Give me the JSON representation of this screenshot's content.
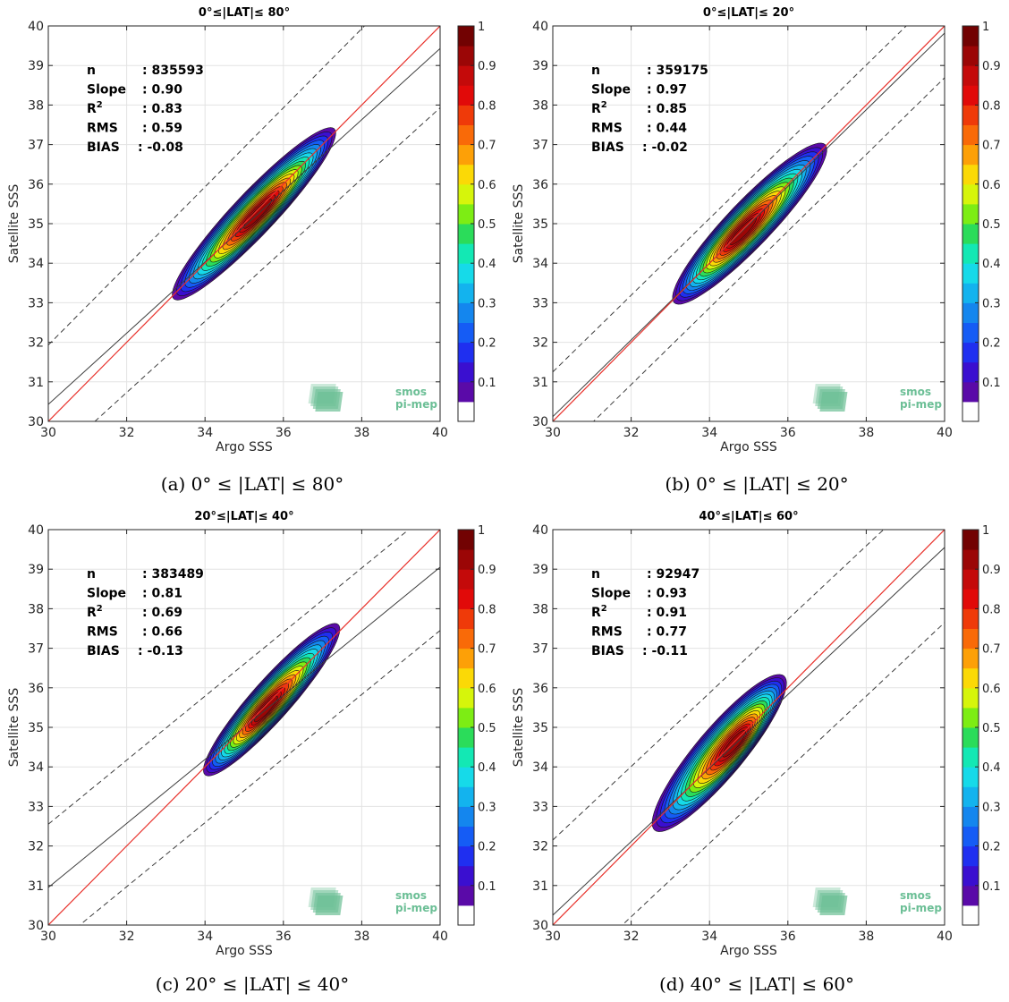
{
  "figure": {
    "colorbar_ticks": [
      "0.1",
      "0.2",
      "0.3",
      "0.4",
      "0.5",
      "0.6",
      "0.7",
      "0.8",
      "0.9",
      "1"
    ],
    "colormap": [
      "#ffffff",
      "#5a0aa8",
      "#3a0fd0",
      "#1f2ff0",
      "#155cf5",
      "#1486ee",
      "#13b3ee",
      "#16dae9",
      "#13e8b4",
      "#2bdc5a",
      "#7ded14",
      "#d6f50b",
      "#fbd906",
      "#fda007",
      "#f96a08",
      "#ef3a09",
      "#e10a09",
      "#c40a0a",
      "#9b0606",
      "#720202"
    ],
    "watermark": {
      "line1": "smos",
      "line2": "pi-mep",
      "color": "#6cbf96"
    },
    "line_colors": {
      "identity": "#e8312b",
      "fit": "#3c3c3c",
      "envelope": "#3c3c3c",
      "contour": "#141414"
    },
    "stats_labels": {
      "n": "n",
      "slope": "Slope",
      "r2_base": "R",
      "r2_sup": "2",
      "rms": "RMS",
      "bias": "BIAS"
    }
  },
  "chart_data": [
    {
      "type": "contour",
      "title": "0°≤|LAT|≤ 80°",
      "caption": "(a) 0° ≤ |LAT| ≤ 80°",
      "xlabel": "Argo SSS",
      "ylabel": "Satellite SSS",
      "xlim": [
        30,
        40
      ],
      "ylim": [
        30,
        40
      ],
      "xticks": [
        30,
        32,
        34,
        36,
        38,
        40
      ],
      "yticks": [
        30,
        31,
        32,
        33,
        34,
        35,
        36,
        37,
        38,
        39,
        40
      ],
      "grid": true,
      "stats": {
        "n": ": 835593",
        "slope": ": 0.90",
        "r2": ": 0.83",
        "rms": ": 0.59",
        "bias": ": -0.08"
      },
      "fit_line": [
        [
          30,
          30.43
        ],
        [
          40,
          39.43
        ]
      ],
      "envelope_upper": [
        [
          30,
          31.93
        ],
        [
          40,
          41.93
        ]
      ],
      "envelope_lower": [
        [
          30,
          28.93
        ],
        [
          40,
          37.93
        ]
      ],
      "density_peak": [
        35.35,
        35.25
      ],
      "density_extent": {
        "along_low": [
          33.2,
          33.1
        ],
        "along_high": [
          37.3,
          37.4
        ],
        "half_width": 0.75
      }
    },
    {
      "type": "contour",
      "title": "0°≤|LAT|≤ 20°",
      "caption": "(b) 0° ≤ |LAT| ≤ 20°",
      "xlabel": "Argo SSS",
      "ylabel": "Satellite SSS",
      "xlim": [
        30,
        40
      ],
      "ylim": [
        30,
        40
      ],
      "xticks": [
        30,
        32,
        34,
        36,
        38,
        40
      ],
      "yticks": [
        30,
        31,
        32,
        33,
        34,
        35,
        36,
        37,
        38,
        39,
        40
      ],
      "grid": true,
      "stats": {
        "n": ": 359175",
        "slope": ": 0.97",
        "r2": ": 0.85",
        "rms": ": 0.44",
        "bias": ": -0.02"
      },
      "fit_line": [
        [
          30,
          30.12
        ],
        [
          40,
          39.82
        ]
      ],
      "envelope_upper": [
        [
          30,
          31.25
        ],
        [
          40,
          40.95
        ]
      ],
      "envelope_lower": [
        [
          30,
          28.99
        ],
        [
          40,
          38.69
        ]
      ],
      "density_peak": [
        34.85,
        34.8
      ],
      "density_extent": {
        "along_low": [
          33.1,
          33.0
        ],
        "along_high": [
          36.95,
          37.0
        ],
        "half_width": 0.8
      }
    },
    {
      "type": "contour",
      "title": "20°≤|LAT|≤ 40°",
      "caption": "(c) 20° ≤ |LAT| ≤ 40°",
      "xlabel": "Argo SSS",
      "ylabel": "Satellite SSS",
      "xlim": [
        30,
        40
      ],
      "ylim": [
        30,
        40
      ],
      "xticks": [
        30,
        32,
        34,
        36,
        38,
        40
      ],
      "yticks": [
        30,
        31,
        32,
        33,
        34,
        35,
        36,
        37,
        38,
        39,
        40
      ],
      "grid": true,
      "stats": {
        "n": ": 383489",
        "slope": ": 0.81",
        "r2": ": 0.69",
        "rms": ": 0.66",
        "bias": ": -0.13"
      },
      "fit_line": [
        [
          30,
          30.95
        ],
        [
          40,
          39.05
        ]
      ],
      "envelope_upper": [
        [
          30,
          32.55
        ],
        [
          40,
          40.65
        ]
      ],
      "envelope_lower": [
        [
          30,
          29.35
        ],
        [
          40,
          37.45
        ]
      ],
      "density_peak": [
        35.55,
        35.45
      ],
      "density_extent": {
        "along_low": [
          34.0,
          33.8
        ],
        "along_high": [
          37.4,
          37.6
        ],
        "half_width": 0.7
      }
    },
    {
      "type": "contour",
      "title": "40°≤|LAT|≤ 60°",
      "caption": "(d) 40° ≤ |LAT| ≤ 60°",
      "xlabel": "Argo SSS",
      "ylabel": "Satellite SSS",
      "xlim": [
        30,
        40
      ],
      "ylim": [
        30,
        40
      ],
      "xticks": [
        30,
        32,
        34,
        36,
        38,
        40
      ],
      "yticks": [
        30,
        31,
        32,
        33,
        34,
        35,
        36,
        37,
        38,
        39,
        40
      ],
      "grid": true,
      "stats": {
        "n": ": 92947",
        "slope": ": 0.93",
        "r2": ": 0.91",
        "rms": ": 0.77",
        "bias": ": -0.11"
      },
      "fit_line": [
        [
          30,
          30.25
        ],
        [
          40,
          39.55
        ]
      ],
      "envelope_upper": [
        [
          30,
          32.15
        ],
        [
          40,
          41.45
        ]
      ],
      "envelope_lower": [
        [
          30,
          28.35
        ],
        [
          40,
          37.65
        ]
      ],
      "density_peak": [
        34.65,
        34.6
      ],
      "density_extent": {
        "along_low": [
          32.6,
          32.4
        ],
        "along_high": [
          35.9,
          36.3
        ],
        "half_width": 0.85
      }
    }
  ]
}
